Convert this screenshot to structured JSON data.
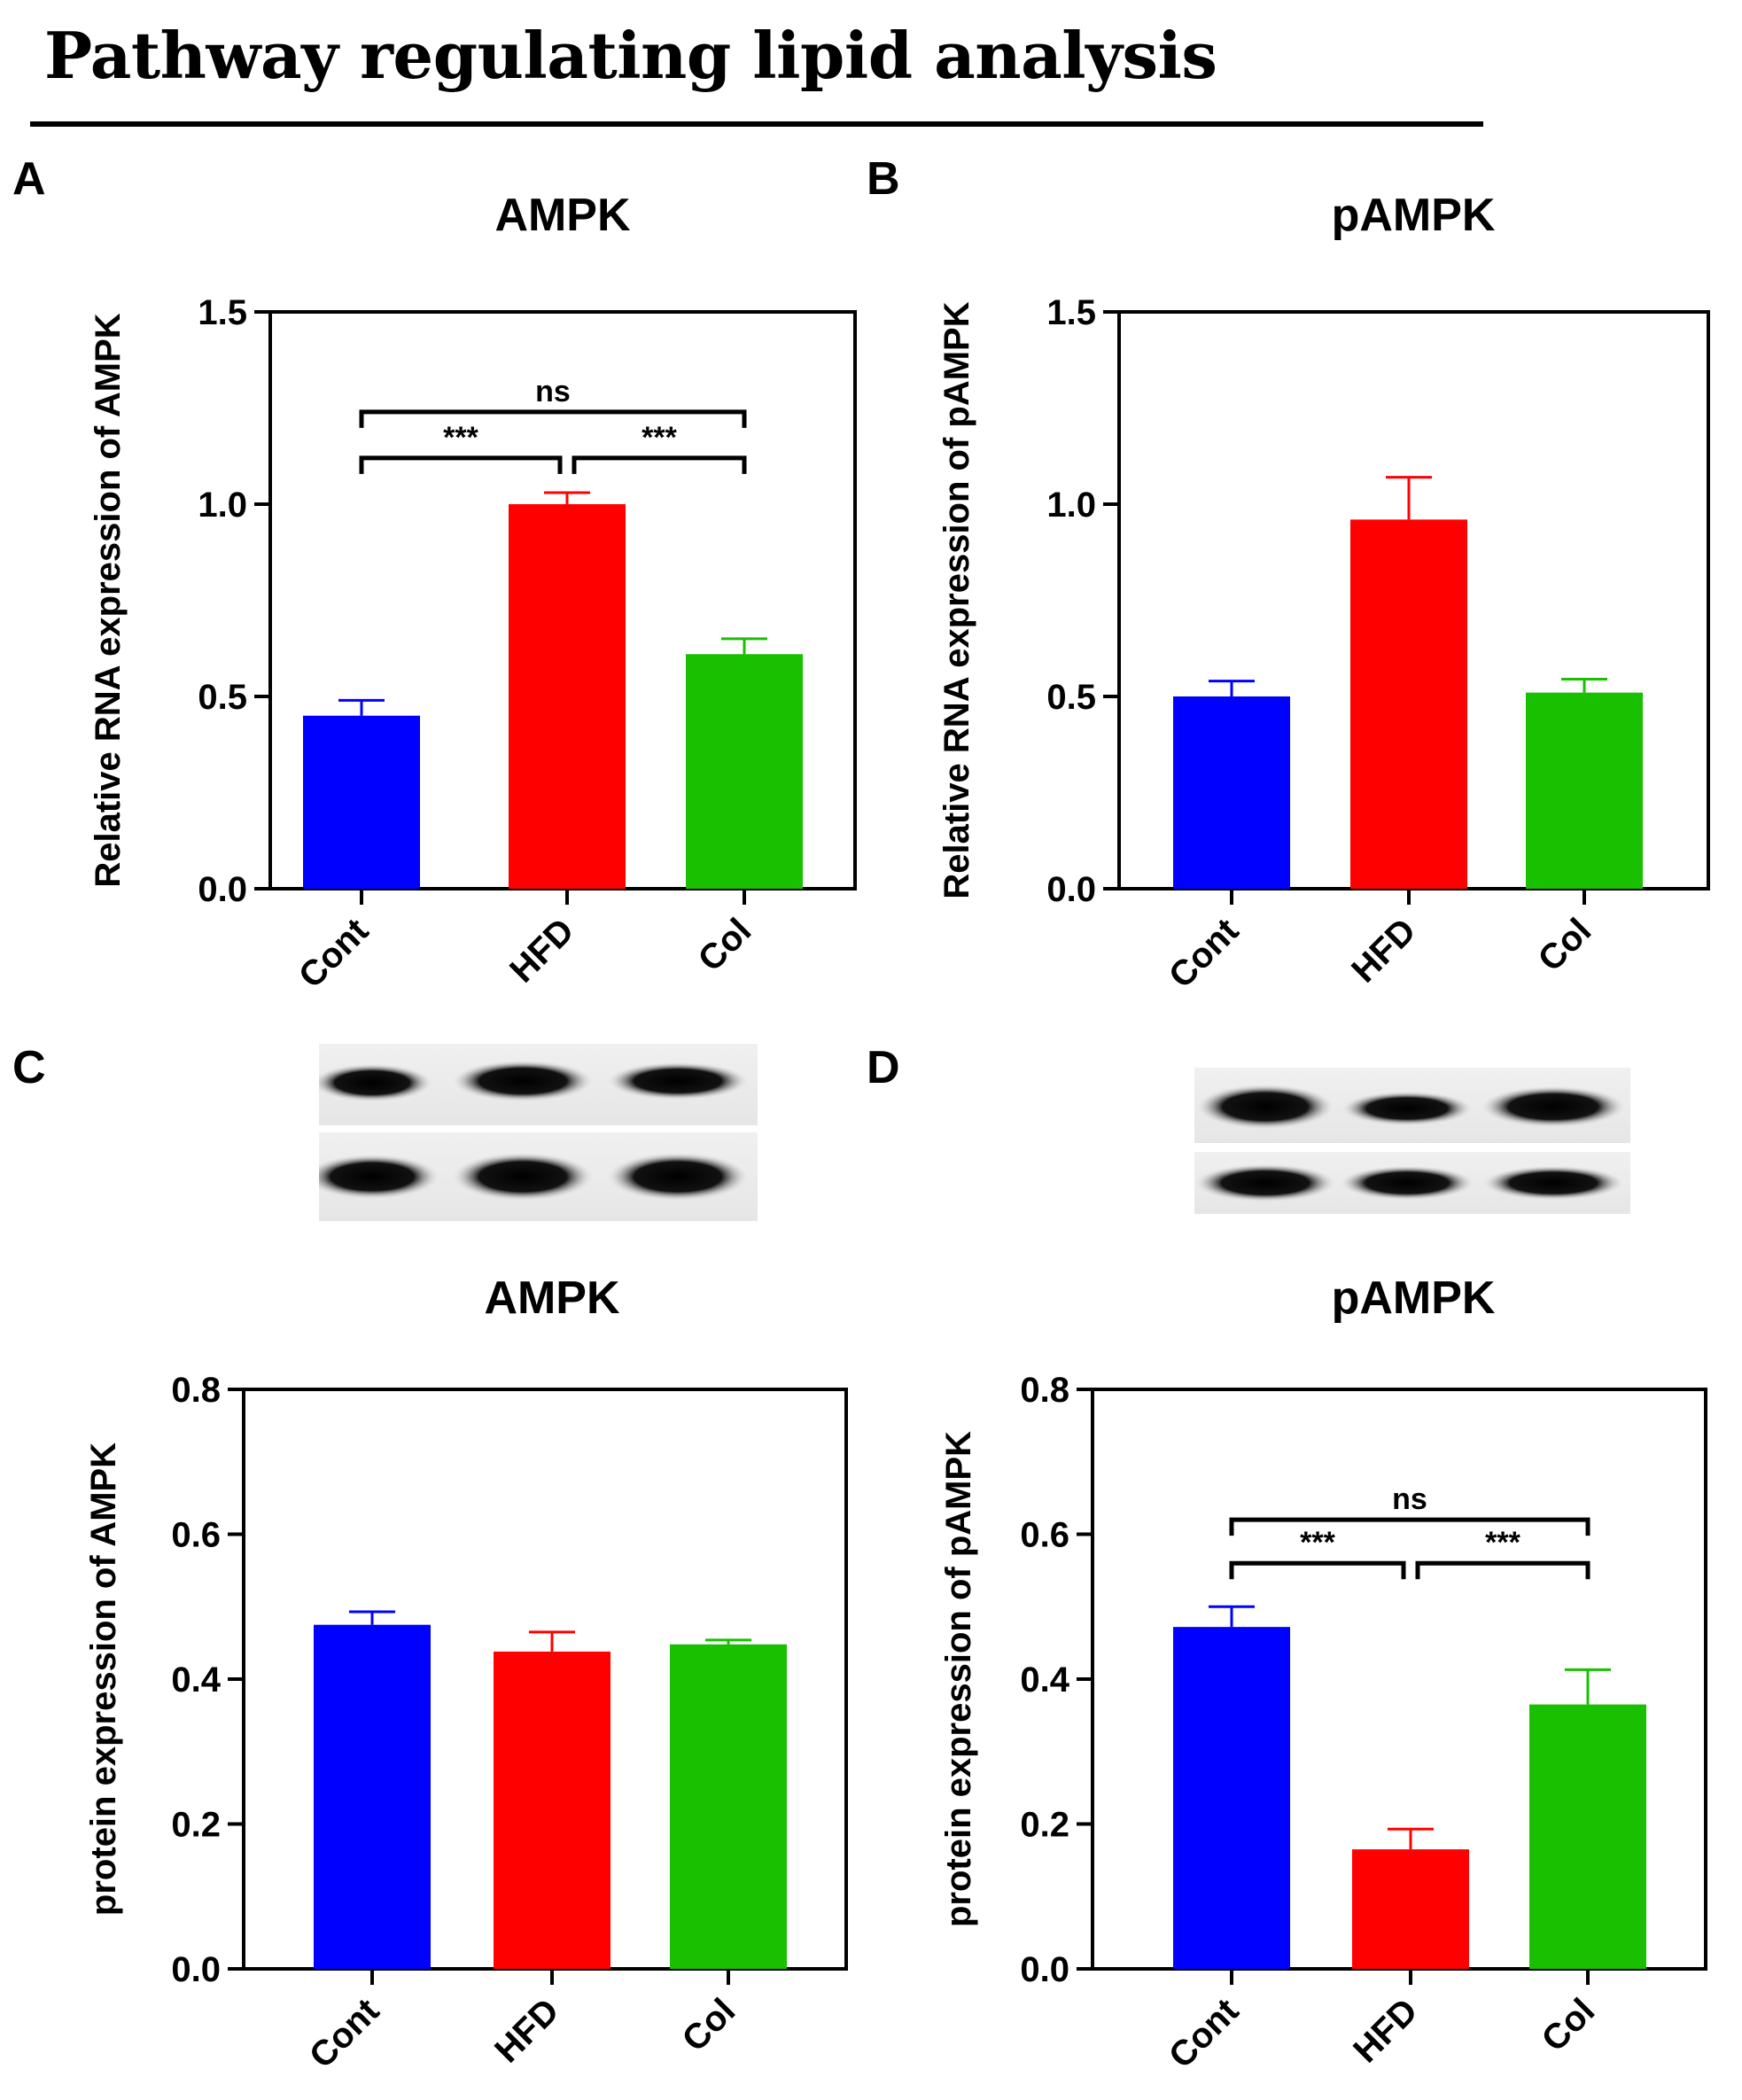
{
  "figure_title": "Pathway regulating lipid analysis",
  "panel_letters": [
    "A",
    "B",
    "C",
    "D"
  ],
  "colors": {
    "Cont": "#0000ff",
    "HFD": "#ff0000",
    "Col": "#19c000"
  },
  "chart_data": [
    {
      "id": "A",
      "type": "bar",
      "title": "AMPK",
      "ylabel": "Relative RNA expression of AMPK",
      "xlabel": "",
      "categories": [
        "Cont",
        "HFD",
        "Col"
      ],
      "values": [
        0.45,
        1.0,
        0.61
      ],
      "errors": [
        0.04,
        0.03,
        0.04
      ],
      "ylim": [
        0,
        1.5
      ],
      "yticks": [
        0.0,
        0.5,
        1.0,
        1.5
      ],
      "ytick_labels": [
        "0.0",
        "0.5",
        "1.0",
        "1.5"
      ],
      "significance": [
        {
          "from": "Cont",
          "to": "HFD",
          "label": "***",
          "y": 1.12
        },
        {
          "from": "HFD",
          "to": "Col",
          "label": "***",
          "y": 1.12
        },
        {
          "from": "Cont",
          "to": "Col",
          "label": "ns",
          "y": 1.24
        }
      ]
    },
    {
      "id": "B",
      "type": "bar",
      "title": "pAMPK",
      "ylabel": "Relative RNA expression of pAMPK",
      "xlabel": "",
      "categories": [
        "Cont",
        "HFD",
        "Col"
      ],
      "values": [
        0.5,
        0.96,
        0.51
      ],
      "errors": [
        0.04,
        0.11,
        0.035
      ],
      "ylim": [
        0,
        1.5
      ],
      "yticks": [
        0.0,
        0.5,
        1.0,
        1.5
      ],
      "ytick_labels": [
        "0.0",
        "0.5",
        "1.0",
        "1.5"
      ],
      "significance": []
    },
    {
      "id": "C",
      "type": "bar",
      "title": "AMPK",
      "ylabel": "protein expression of AMPK",
      "xlabel": "",
      "categories": [
        "Cont",
        "HFD",
        "Col"
      ],
      "values": [
        0.475,
        0.438,
        0.448
      ],
      "errors": [
        0.018,
        0.027,
        0.006
      ],
      "ylim": [
        0,
        0.8
      ],
      "yticks": [
        0.0,
        0.2,
        0.4,
        0.6,
        0.8
      ],
      "ytick_labels": [
        "0.0",
        "0.2",
        "0.4",
        "0.6",
        "0.8"
      ],
      "significance": []
    },
    {
      "id": "D",
      "type": "bar",
      "title": "pAMPK",
      "ylabel": "protein expression of pAMPK",
      "xlabel": "",
      "categories": [
        "Cont",
        "HFD",
        "Col"
      ],
      "values": [
        0.472,
        0.165,
        0.365
      ],
      "errors": [
        0.028,
        0.028,
        0.048
      ],
      "ylim": [
        0,
        0.8
      ],
      "yticks": [
        0.0,
        0.2,
        0.4,
        0.6,
        0.8
      ],
      "ytick_labels": [
        "0.0",
        "0.2",
        "0.4",
        "0.6",
        "0.8"
      ],
      "significance": [
        {
          "from": "Cont",
          "to": "HFD",
          "label": "***",
          "y": 0.56
        },
        {
          "from": "HFD",
          "to": "Col",
          "label": "***",
          "y": 0.56
        },
        {
          "from": "Cont",
          "to": "Col",
          "label": "ns",
          "y": 0.62
        }
      ]
    }
  ]
}
